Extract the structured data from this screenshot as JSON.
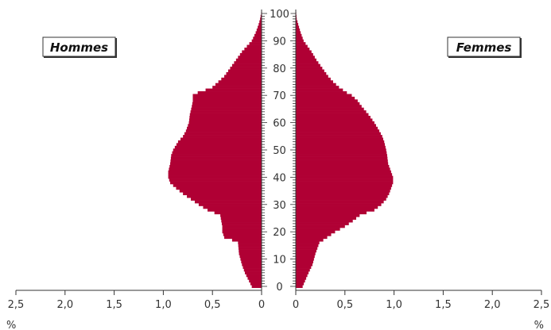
{
  "chart_data": {
    "type": "bar",
    "orientation": "horizontal",
    "subtype": "population-pyramid",
    "title": "",
    "legend": [
      "Hommes",
      "Femmes"
    ],
    "x_unit": "%",
    "x_ticks_left": [
      "2,5",
      "2,0",
      "1,5",
      "1,0",
      "0,5",
      "0"
    ],
    "x_ticks_right": [
      "0",
      "0,5",
      "1,0",
      "1,5",
      "2,0",
      "2,5"
    ],
    "xlim": [
      0,
      2.5
    ],
    "age_ticks": [
      "0",
      "10",
      "20",
      "30",
      "40",
      "50",
      "60",
      "70",
      "80",
      "90",
      "100"
    ],
    "ylim": [
      0,
      100
    ],
    "bar_color": "#b00034",
    "series": [
      {
        "name": "Hommes",
        "ages": [
          0,
          5,
          8,
          12,
          16,
          17,
          18,
          20,
          22,
          24,
          26,
          27,
          28,
          30,
          32,
          34,
          36,
          38,
          40,
          42,
          45,
          48,
          50,
          53,
          55,
          57,
          60,
          63,
          66,
          68,
          70,
          71,
          72,
          73,
          75,
          77,
          80,
          83,
          86,
          88,
          90,
          93,
          96,
          98,
          100
        ],
        "values": [
          0.1,
          0.17,
          0.2,
          0.23,
          0.24,
          0.3,
          0.38,
          0.4,
          0.4,
          0.41,
          0.42,
          0.48,
          0.55,
          0.64,
          0.72,
          0.8,
          0.87,
          0.93,
          0.95,
          0.95,
          0.93,
          0.92,
          0.9,
          0.85,
          0.8,
          0.77,
          0.74,
          0.73,
          0.71,
          0.7,
          0.7,
          0.65,
          0.57,
          0.5,
          0.44,
          0.38,
          0.32,
          0.26,
          0.2,
          0.15,
          0.1,
          0.06,
          0.03,
          0.015,
          0.005
        ]
      },
      {
        "name": "Femmes",
        "ages": [
          0,
          5,
          8,
          12,
          16,
          17,
          18,
          20,
          22,
          24,
          26,
          27,
          28,
          30,
          32,
          34,
          36,
          38,
          40,
          42,
          45,
          48,
          50,
          53,
          55,
          57,
          60,
          63,
          66,
          68,
          70,
          71,
          72,
          73,
          75,
          77,
          80,
          83,
          86,
          88,
          90,
          93,
          96,
          98,
          100
        ],
        "values": [
          0.07,
          0.13,
          0.17,
          0.2,
          0.24,
          0.28,
          0.32,
          0.4,
          0.5,
          0.58,
          0.65,
          0.72,
          0.8,
          0.87,
          0.92,
          0.95,
          0.97,
          0.99,
          0.99,
          0.97,
          0.94,
          0.93,
          0.92,
          0.9,
          0.88,
          0.85,
          0.8,
          0.74,
          0.67,
          0.63,
          0.57,
          0.52,
          0.48,
          0.44,
          0.38,
          0.33,
          0.27,
          0.21,
          0.16,
          0.12,
          0.08,
          0.05,
          0.025,
          0.01,
          0.005
        ]
      }
    ]
  }
}
